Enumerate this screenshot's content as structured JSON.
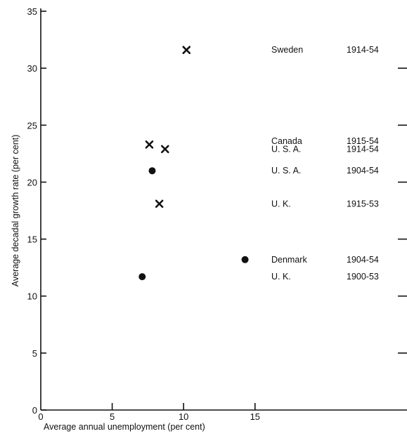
{
  "chart_data": {
    "type": "scatter",
    "title": "",
    "xlabel": "Average annual unemployment (per cent)",
    "ylabel": "Average decadal growth rate (per cent)",
    "xlim": [
      0,
      25
    ],
    "ylim": [
      0,
      35
    ],
    "x_ticks": [
      0,
      5,
      10,
      15
    ],
    "y_ticks": [
      0,
      5,
      10,
      15,
      20,
      25,
      30,
      35
    ],
    "grid": false,
    "right_axis_ticks": true,
    "markers": {
      "x_series": "cross",
      "dot_series": "filled-circle"
    },
    "series": [
      {
        "marker": "cross",
        "points": [
          {
            "x": 10.2,
            "y": 31.6
          },
          {
            "x": 7.6,
            "y": 23.3
          },
          {
            "x": 8.7,
            "y": 22.9
          },
          {
            "x": 8.3,
            "y": 18.1
          }
        ]
      },
      {
        "marker": "dot",
        "points": [
          {
            "x": 7.8,
            "y": 21.0
          },
          {
            "x": 14.3,
            "y": 13.2
          },
          {
            "x": 7.1,
            "y": 11.7
          }
        ]
      }
    ],
    "annotations": [
      {
        "country": "Sweden",
        "period": "1914-54",
        "y": 31.6
      },
      {
        "country": "Canada",
        "period": "1915-54",
        "y": 23.6
      },
      {
        "country": "U. S. A.",
        "period": "1914-54",
        "y": 22.9
      },
      {
        "country": "U. S. A.",
        "period": "1904-54",
        "y": 21.0
      },
      {
        "country": "U. K.",
        "period": "1915-53",
        "y": 18.1
      },
      {
        "country": "Denmark",
        "period": "1904-54",
        "y": 13.2
      },
      {
        "country": "U. K.",
        "period": "1900-53",
        "y": 11.7
      }
    ]
  }
}
